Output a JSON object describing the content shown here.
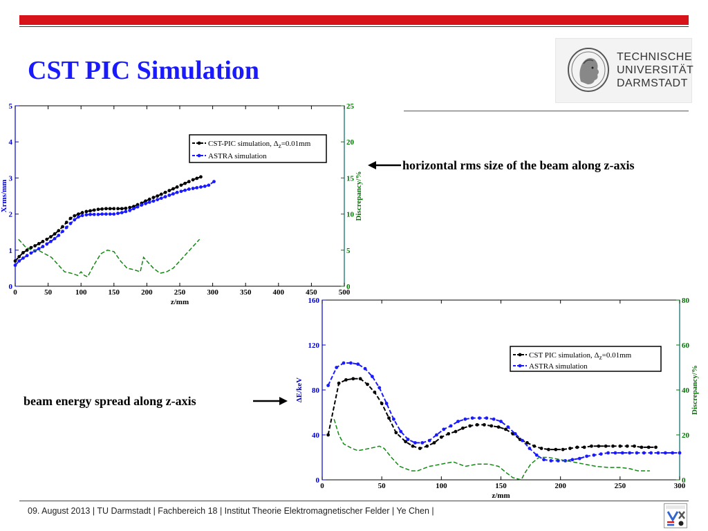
{
  "slide": {
    "title": "CST PIC Simulation",
    "annotation_top": "horizontal rms size of the beam along z-axis",
    "annotation_bottom": "beam energy spread  along z-axis",
    "footer": "09. August 2013  |  TU Darmstadt  |  Fachbereich 18  |  Institut Theorie Elektromagnetischer Felder  |  Ye Chen |",
    "logo": {
      "line1": "TECHNISCHE",
      "line2": "UNIVERSITÄT",
      "line3": "DARMSTADT"
    }
  },
  "colors": {
    "accent_red": "#d7141a",
    "title_blue": "#1a1aff",
    "axis_blue": "#0000cc",
    "axis_green": "#007700",
    "series_black": "#000000",
    "series_blue": "#1a1aff",
    "series_green": "#118811"
  },
  "icons": [
    "tu-darmstadt-seal-icon",
    "arrow-left-icon",
    "arrow-right-icon",
    "temf-logo-icon"
  ],
  "chart_data": [
    {
      "type": "line",
      "xlabel": "z/mm",
      "ylabel": "Xrms/mm",
      "y2label": "Discrepancy/%",
      "xlim": [
        0,
        500
      ],
      "ylim": [
        0,
        5
      ],
      "y2lim": [
        0,
        25
      ],
      "xticks": [
        "0",
        "50",
        "100",
        "150",
        "200",
        "250",
        "300",
        "350",
        "400",
        "450",
        "500"
      ],
      "yticks": [
        "0",
        "1",
        "2",
        "3",
        "4",
        "5"
      ],
      "y2ticks": [
        "0",
        "5",
        "10",
        "15",
        "20",
        "25"
      ],
      "legend_position": "top-right",
      "series": [
        {
          "name": "CST-PIC simulation, Δz=0.01mm",
          "legend_main": "CST-PIC simulation, Δ",
          "legend_sub": "z",
          "legend_tail": "=0.01mm",
          "axis": "left",
          "style": "dashed-dots",
          "x": [
            0,
            6,
            12,
            18,
            24,
            30,
            36,
            42,
            48,
            54,
            60,
            66,
            72,
            78,
            84,
            90,
            96,
            102,
            108,
            114,
            120,
            126,
            132,
            138,
            144,
            150,
            156,
            162,
            168,
            174,
            180,
            186,
            192,
            198,
            204,
            210,
            216,
            222,
            228,
            234,
            240,
            246,
            252,
            258,
            264,
            270,
            276,
            282
          ],
          "y": [
            0.7,
            0.82,
            0.93,
            1.0,
            1.07,
            1.12,
            1.18,
            1.24,
            1.3,
            1.37,
            1.45,
            1.54,
            1.65,
            1.77,
            1.88,
            1.95,
            2.0,
            2.04,
            2.07,
            2.09,
            2.11,
            2.13,
            2.14,
            2.15,
            2.15,
            2.15,
            2.15,
            2.15,
            2.16,
            2.18,
            2.21,
            2.26,
            2.3,
            2.36,
            2.41,
            2.46,
            2.5,
            2.55,
            2.6,
            2.65,
            2.7,
            2.75,
            2.8,
            2.85,
            2.9,
            2.95,
            2.99,
            3.03
          ]
        },
        {
          "name": "ASTRA simulation",
          "axis": "left",
          "style": "dashed-dots",
          "x": [
            0,
            6,
            12,
            18,
            24,
            30,
            36,
            42,
            48,
            54,
            60,
            66,
            72,
            78,
            84,
            90,
            96,
            102,
            108,
            114,
            120,
            126,
            132,
            138,
            144,
            150,
            156,
            162,
            168,
            174,
            180,
            186,
            192,
            198,
            204,
            210,
            216,
            222,
            228,
            234,
            240,
            246,
            252,
            258,
            264,
            270,
            276,
            282,
            288,
            294,
            302
          ],
          "y": [
            0.58,
            0.7,
            0.78,
            0.85,
            0.92,
            0.98,
            1.04,
            1.1,
            1.17,
            1.24,
            1.32,
            1.41,
            1.52,
            1.63,
            1.74,
            1.84,
            1.92,
            1.96,
            1.98,
            1.99,
            1.99,
            1.99,
            2.0,
            2.0,
            2.0,
            2.0,
            2.02,
            2.04,
            2.07,
            2.1,
            2.15,
            2.2,
            2.25,
            2.29,
            2.33,
            2.36,
            2.4,
            2.44,
            2.48,
            2.52,
            2.56,
            2.6,
            2.63,
            2.66,
            2.69,
            2.71,
            2.73,
            2.75,
            2.77,
            2.8,
            2.9
          ]
        },
        {
          "name": "Discrepancy",
          "axis": "right",
          "style": "dashed",
          "x": [
            5,
            15,
            25,
            35,
            45,
            55,
            65,
            75,
            85,
            95,
            100,
            105,
            110,
            120,
            130,
            140,
            150,
            160,
            170,
            180,
            190,
            195,
            200,
            210,
            220,
            230,
            240,
            250,
            260,
            270,
            280
          ],
          "y": [
            6.5,
            5.5,
            5.0,
            5.0,
            4.5,
            4.0,
            3.0,
            2.0,
            1.8,
            1.5,
            2.0,
            1.5,
            1.3,
            3.0,
            4.5,
            5.0,
            4.8,
            3.5,
            2.5,
            2.3,
            2.0,
            4.0,
            3.5,
            2.5,
            1.8,
            2.0,
            2.5,
            3.5,
            4.5,
            5.5,
            6.5
          ]
        }
      ]
    },
    {
      "type": "line",
      "xlabel": "z/mm",
      "ylabel": "ΔE/keV",
      "y2label": "Discrepancy/%",
      "xlim": [
        0,
        300
      ],
      "ylim": [
        0,
        160
      ],
      "y2lim": [
        0,
        80
      ],
      "xticks": [
        "0",
        "50",
        "100",
        "150",
        "200",
        "250",
        "300"
      ],
      "yticks": [
        "0",
        "40",
        "80",
        "120",
        "160"
      ],
      "y2ticks": [
        "0",
        "20",
        "40",
        "60",
        "80"
      ],
      "legend_position": "top-right",
      "series": [
        {
          "name": "CST PIC simulation, Δz=0.01mm",
          "legend_main": "CST PIC simulation, Δ",
          "legend_sub": "z",
          "legend_tail": "=0.01mm",
          "axis": "left",
          "style": "dashed-dots",
          "x": [
            5,
            14,
            20,
            26,
            32,
            38,
            44,
            50,
            56,
            62,
            70,
            76,
            82,
            88,
            94,
            100,
            106,
            112,
            118,
            124,
            130,
            136,
            142,
            148,
            154,
            160,
            166,
            172,
            178,
            184,
            190,
            196,
            202,
            208,
            214,
            220,
            226,
            232,
            238,
            244,
            250,
            256,
            262,
            268,
            274,
            280
          ],
          "y": [
            40,
            86,
            89,
            90,
            90,
            85,
            78,
            68,
            55,
            42,
            34,
            30,
            28,
            30,
            33,
            38,
            41,
            43,
            46,
            48,
            49,
            49,
            48,
            47,
            45,
            41,
            36,
            33,
            30,
            28,
            27,
            27,
            27,
            28,
            29,
            29,
            30,
            30,
            30,
            30,
            30,
            30,
            30,
            29,
            29,
            29
          ]
        },
        {
          "name": "ASTRA simulation",
          "axis": "left",
          "style": "dashed-dots",
          "x": [
            5,
            12,
            18,
            24,
            30,
            36,
            42,
            48,
            54,
            60,
            66,
            72,
            78,
            84,
            90,
            96,
            102,
            108,
            114,
            120,
            126,
            132,
            138,
            144,
            150,
            156,
            162,
            168,
            174,
            180,
            186,
            192,
            198,
            204,
            210,
            216,
            222,
            228,
            234,
            240,
            246,
            252,
            258,
            264,
            270,
            276,
            282,
            288,
            294,
            300
          ],
          "y": [
            84,
            100,
            104,
            104,
            103,
            99,
            92,
            82,
            68,
            54,
            43,
            36,
            33,
            33,
            35,
            40,
            45,
            48,
            52,
            54,
            55,
            55,
            55,
            54,
            52,
            47,
            41,
            35,
            28,
            22,
            18,
            17,
            17,
            17,
            18,
            19,
            21,
            22,
            23,
            24,
            24,
            24,
            24,
            24,
            24,
            24,
            24,
            24,
            24,
            24
          ]
        },
        {
          "name": "Discrepancy",
          "axis": "right",
          "style": "dashed",
          "x": [
            10,
            14,
            18,
            25,
            30,
            40,
            48,
            52,
            58,
            65,
            75,
            80,
            90,
            100,
            110,
            120,
            130,
            140,
            148,
            155,
            160,
            167,
            170,
            175,
            182,
            190,
            200,
            210,
            220,
            230,
            240,
            250,
            258,
            265,
            275
          ],
          "y": [
            27,
            20,
            16,
            14,
            13,
            14,
            15,
            14,
            10,
            6,
            4,
            4,
            6,
            7,
            8,
            6,
            7,
            7,
            6,
            3,
            1,
            0,
            3,
            7,
            10,
            10,
            9,
            8,
            7,
            6,
            5.5,
            5.5,
            5,
            4,
            4
          ]
        }
      ]
    }
  ]
}
